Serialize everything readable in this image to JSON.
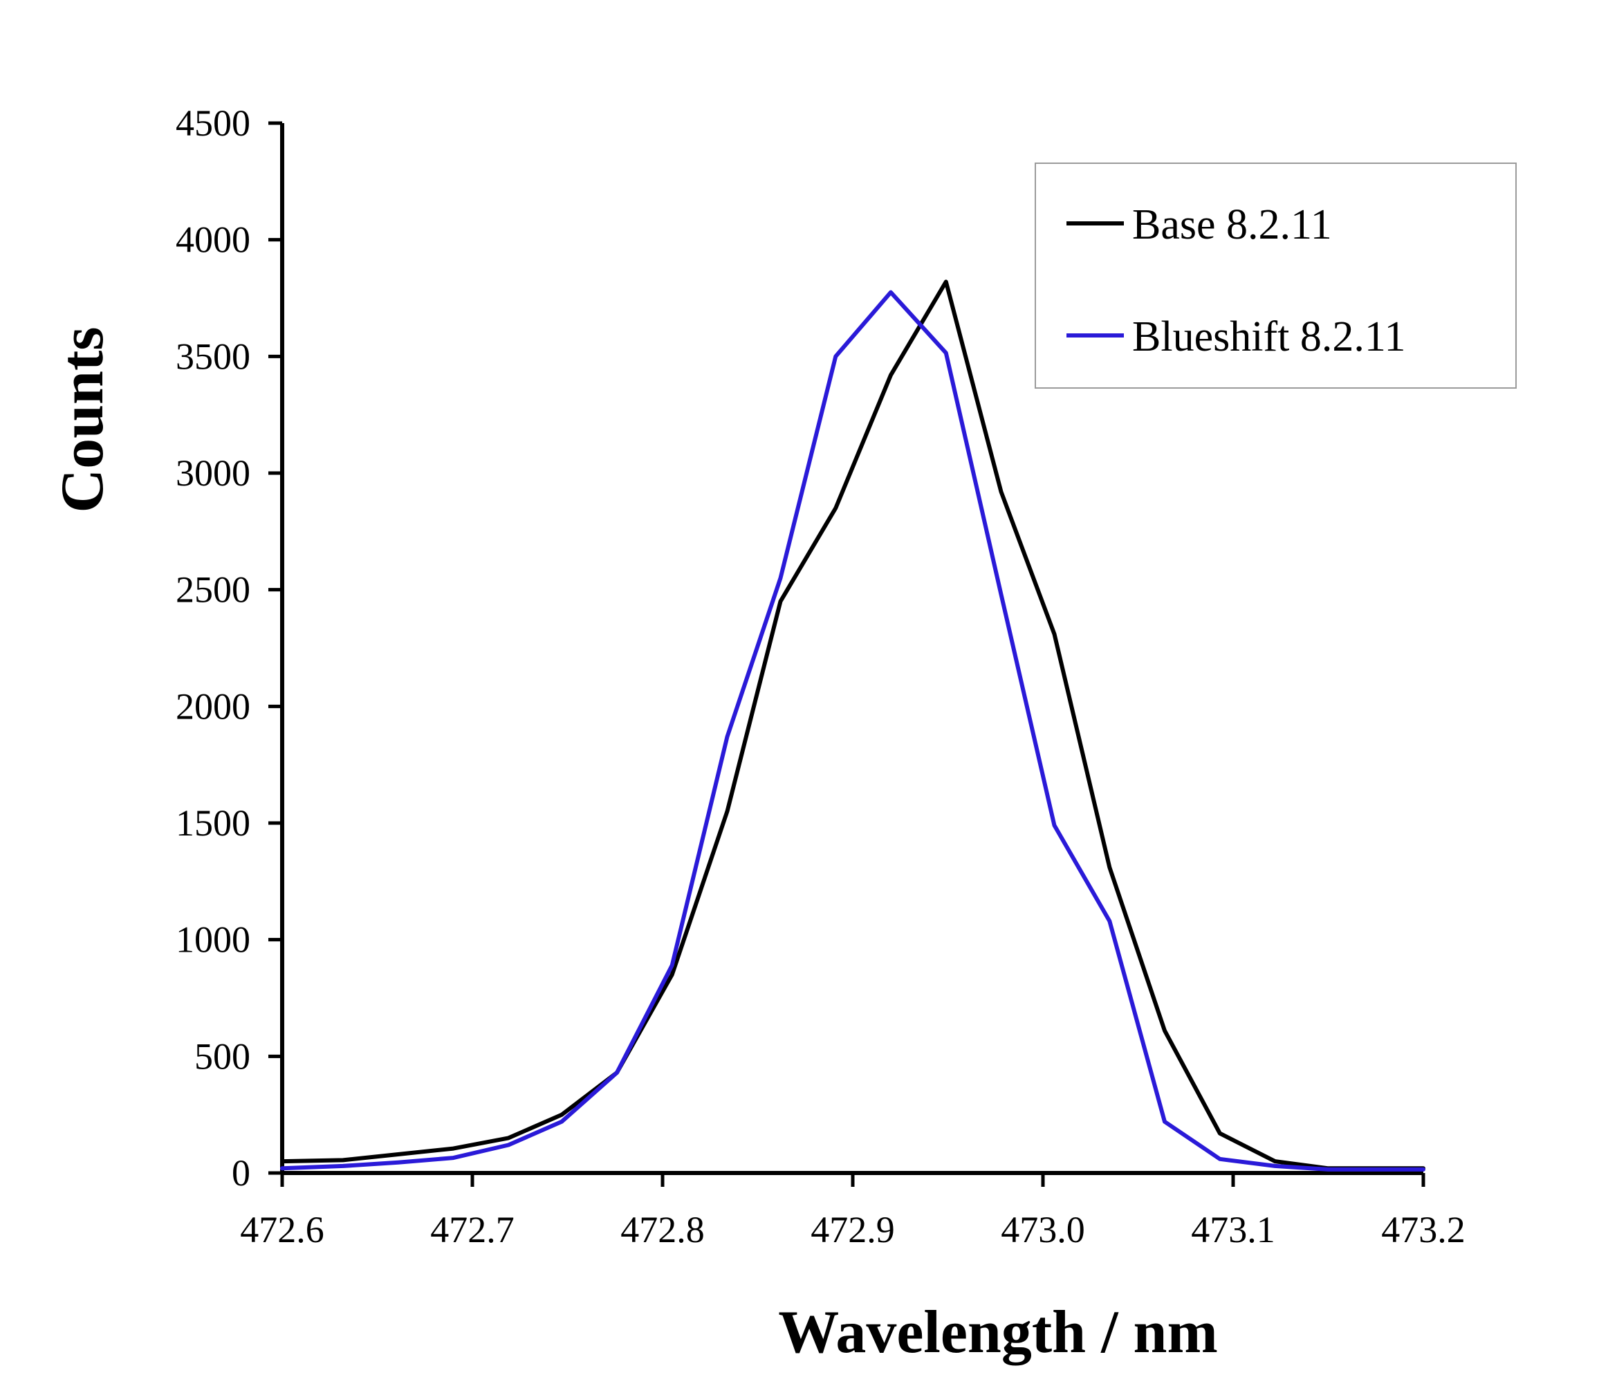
{
  "chart_data": {
    "type": "line",
    "title": "",
    "xlabel": "Wavelength / nm",
    "ylabel": "Counts",
    "xlim": [
      472.6,
      473.2
    ],
    "ylim": [
      0,
      4500
    ],
    "x_ticks": [
      "472.6",
      "472.7",
      "472.8",
      "472.9",
      "473.0",
      "473.1",
      "473.2"
    ],
    "y_ticks": [
      "0",
      "500",
      "1000",
      "1500",
      "2000",
      "2500",
      "3000",
      "3500",
      "4000",
      "4500"
    ],
    "grid": false,
    "legend_position": "top-right",
    "series": [
      {
        "name": "Base 8.2.11",
        "color": "#000000",
        "x": [
          472.6,
          472.632,
          472.661,
          472.69,
          472.719,
          472.747,
          472.776,
          472.805,
          472.834,
          472.862,
          472.891,
          472.92,
          472.949,
          472.978,
          473.006,
          473.035,
          473.064,
          473.093,
          473.122,
          473.15,
          473.179,
          473.2
        ],
        "y": [
          50,
          55,
          80,
          105,
          150,
          250,
          430,
          850,
          1550,
          2450,
          2850,
          3420,
          3820,
          2920,
          2310,
          1310,
          610,
          170,
          50,
          20,
          20,
          20
        ]
      },
      {
        "name": "Blueshift 8.2.11",
        "color": "#2a1ad8",
        "x": [
          472.6,
          472.632,
          472.661,
          472.69,
          472.719,
          472.747,
          472.776,
          472.805,
          472.834,
          472.862,
          472.891,
          472.92,
          472.949,
          472.978,
          473.006,
          473.035,
          473.064,
          473.093,
          473.122,
          473.15,
          473.179,
          473.2
        ],
        "y": [
          20,
          30,
          45,
          65,
          120,
          220,
          430,
          890,
          1870,
          2550,
          3500,
          3775,
          3515,
          2480,
          1490,
          1080,
          220,
          60,
          30,
          15,
          15,
          15
        ]
      }
    ]
  }
}
